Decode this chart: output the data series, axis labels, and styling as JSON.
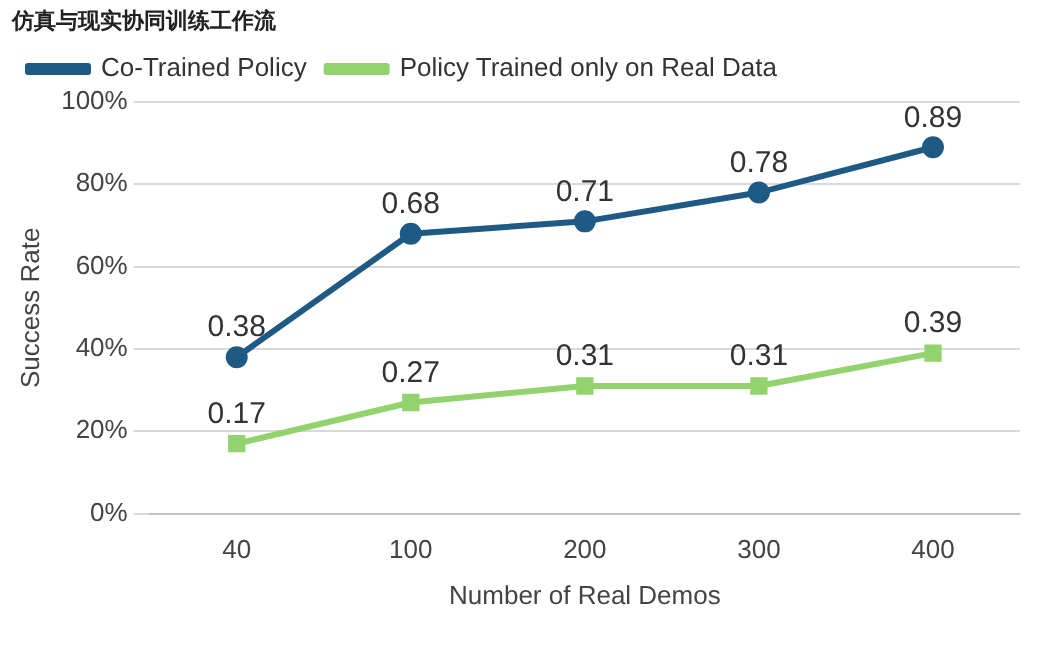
{
  "chart_data": {
    "type": "line",
    "title": "仿真与现实协同训练工作流",
    "xlabel": "Number of Real Demos",
    "ylabel": "Success Rate",
    "categories": [
      "40",
      "100",
      "200",
      "300",
      "400"
    ],
    "series": [
      {
        "name": "Co-Trained Policy",
        "color": "#1f5a85",
        "marker": "circle",
        "values": [
          0.38,
          0.68,
          0.71,
          0.78,
          0.89
        ]
      },
      {
        "name": "Policy Trained only on Real Data",
        "color": "#92d36e",
        "marker": "square",
        "values": [
          0.17,
          0.27,
          0.31,
          0.31,
          0.39
        ]
      }
    ],
    "ylim": [
      0,
      1.0
    ],
    "yticks": [
      {
        "value": 0,
        "label": "0%"
      },
      {
        "value": 0.2,
        "label": "20%"
      },
      {
        "value": 0.4,
        "label": "40%"
      },
      {
        "value": 0.6,
        "label": "60%"
      },
      {
        "value": 0.8,
        "label": "80%"
      },
      {
        "value": 1.0,
        "label": "100%"
      }
    ],
    "grid": "y",
    "legend": "top",
    "data_labels": true,
    "line_style": "solid"
  }
}
